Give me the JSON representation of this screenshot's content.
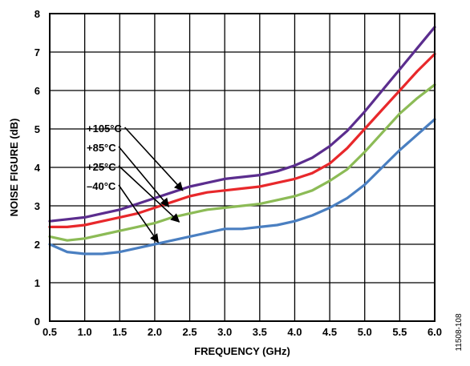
{
  "chart_data": {
    "type": "line",
    "title": "",
    "xlabel": "FREQUENCY (GHz)",
    "ylabel": "NOISE FIGURE (dB)",
    "xlim": [
      0.5,
      6.0
    ],
    "ylim": [
      0,
      8
    ],
    "x_ticks": [
      "0.5",
      "1.0",
      "1.5",
      "2.0",
      "2.5",
      "3.0",
      "3.5",
      "4.0",
      "4.5",
      "5.0",
      "5.5",
      "6.0"
    ],
    "y_ticks": [
      "0",
      "1",
      "2",
      "3",
      "4",
      "5",
      "6",
      "7",
      "8"
    ],
    "grid": true,
    "x": [
      0.5,
      0.75,
      1.0,
      1.25,
      1.5,
      1.75,
      2.0,
      2.25,
      2.5,
      2.75,
      3.0,
      3.25,
      3.5,
      3.75,
      4.0,
      4.25,
      4.5,
      4.75,
      5.0,
      5.25,
      5.5,
      5.75,
      6.0
    ],
    "series": [
      {
        "name": "+105°C",
        "color": "#5b2d8e",
        "values": [
          2.6,
          2.65,
          2.7,
          2.8,
          2.9,
          3.05,
          3.2,
          3.35,
          3.5,
          3.6,
          3.7,
          3.75,
          3.8,
          3.9,
          4.05,
          4.25,
          4.55,
          4.95,
          5.45,
          6.0,
          6.55,
          7.1,
          7.65
        ]
      },
      {
        "name": "+85°C",
        "color": "#e8282b",
        "values": [
          2.45,
          2.45,
          2.5,
          2.6,
          2.7,
          2.8,
          2.95,
          3.1,
          3.25,
          3.35,
          3.4,
          3.45,
          3.5,
          3.6,
          3.7,
          3.85,
          4.1,
          4.5,
          5.0,
          5.5,
          6.0,
          6.5,
          6.95
        ]
      },
      {
        "name": "+25°C",
        "color": "#8cbb56",
        "values": [
          2.2,
          2.1,
          2.15,
          2.25,
          2.35,
          2.45,
          2.55,
          2.7,
          2.8,
          2.9,
          2.95,
          3.0,
          3.05,
          3.15,
          3.25,
          3.4,
          3.65,
          3.95,
          4.4,
          4.9,
          5.4,
          5.8,
          6.15
        ]
      },
      {
        "name": "–40°C",
        "color": "#4a7fc1",
        "values": [
          2.0,
          1.8,
          1.75,
          1.75,
          1.8,
          1.9,
          2.0,
          2.1,
          2.2,
          2.3,
          2.4,
          2.4,
          2.45,
          2.5,
          2.6,
          2.75,
          2.95,
          3.2,
          3.55,
          4.0,
          4.45,
          4.85,
          5.25
        ]
      }
    ],
    "annotations": [
      {
        "label": "+105°C",
        "series": "+105°C",
        "arrow_to": [
          2.4,
          3.4
        ]
      },
      {
        "label": "+85°C",
        "series": "+85°C",
        "arrow_to": [
          2.2,
          2.98
        ]
      },
      {
        "label": "+25°C",
        "series": "+25°C",
        "arrow_to": [
          2.35,
          2.58
        ]
      },
      {
        "label": "–40°C",
        "series": "–40°C",
        "arrow_to": [
          2.05,
          2.05
        ]
      }
    ],
    "figure_id": "11508-108"
  }
}
